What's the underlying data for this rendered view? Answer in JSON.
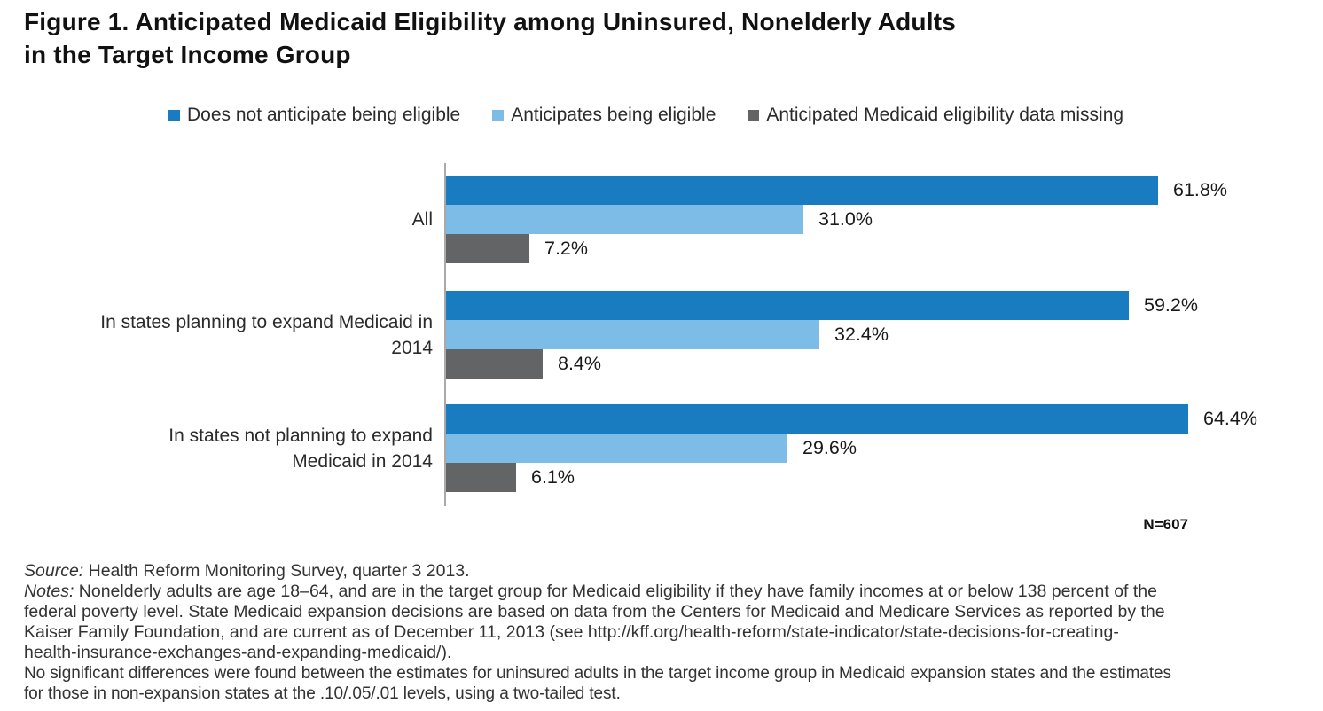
{
  "title": {
    "line1": "Figure 1. Anticipated Medicaid Eligibility among Uninsured, Nonelderly Adults",
    "line2": "in the Target Income Group"
  },
  "chart_data": {
    "type": "bar",
    "orientation": "horizontal",
    "title": "Figure 1. Anticipated Medicaid Eligibility among Uninsured, Nonelderly Adults in the Target Income Group",
    "categories": [
      "All",
      "In states planning to expand Medicaid in 2014",
      "In states not planning to expand Medicaid in 2014"
    ],
    "categories_display": [
      {
        "line1": "All",
        "line2": ""
      },
      {
        "line1": "In states planning to expand Medicaid in",
        "line2": "2014"
      },
      {
        "line1": "In states not planning to expand",
        "line2": "Medicaid in 2014"
      }
    ],
    "series": [
      {
        "name": "Does not anticipate being eligible",
        "color": "#1a7cc0",
        "values": [
          61.8,
          59.2,
          64.4
        ]
      },
      {
        "name": "Anticipates being eligible",
        "color": "#7cbce6",
        "values": [
          31.0,
          32.4,
          29.6
        ]
      },
      {
        "name": "Anticipated Medicaid eligibility data missing",
        "color": "#636466",
        "values": [
          7.2,
          8.4,
          6.1
        ]
      }
    ],
    "value_labels": [
      [
        "61.8%",
        "31.0%",
        "7.2%"
      ],
      [
        "59.2%",
        "32.4%",
        "8.4%"
      ],
      [
        "64.4%",
        "29.6%",
        "6.1%"
      ]
    ],
    "value_suffix": "%",
    "xlim": [
      0,
      69
    ],
    "axis_color": "#a9a9a9",
    "legend_position": "top",
    "grid": false,
    "n_label": "N=607"
  },
  "footer": {
    "lines": [
      {
        "prefix": "Source:",
        "text": " Health Reform Monitoring Survey, quarter 3 2013.",
        "alt": false
      },
      {
        "prefix": "Notes:",
        "text": " Nonelderly adults are age 18–64, and are in the target group for Medicaid eligibility if they have family incomes at or below 138 percent of the",
        "alt": false
      },
      {
        "prefix": "",
        "text": "federal poverty level. State Medicaid expansion decisions are based on data from the Centers for Medicaid and Medicare Services  as reported by the",
        "alt": false
      },
      {
        "prefix": "",
        "text": "Kaiser Family Foundation, and are current as of December 11, 2013 (see http://kff.org/health-reform/state-indicator/state-decisions-for-creating-",
        "alt": false
      },
      {
        "prefix": "",
        "text": "health-insurance-exchanges-and-expanding-medicaid/).",
        "alt": false
      },
      {
        "prefix": "",
        "text": "No significant differences were found between the estimates for uninsured adults in the target income group in Medicaid expansion states and the estimates",
        "alt": true
      },
      {
        "prefix": "",
        "text": "for those in non-expansion states at the .10/.05/.01 levels, using a two-tailed test.",
        "alt": true
      }
    ]
  }
}
